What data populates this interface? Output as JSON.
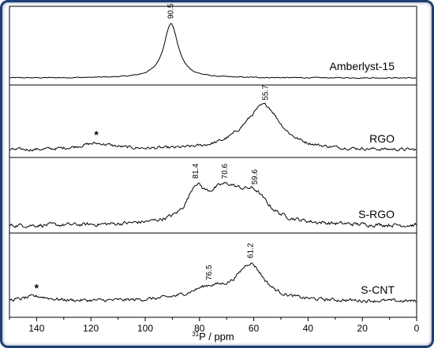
{
  "chart_data": {
    "type": "line",
    "title": "",
    "xlabel_sup": "31",
    "xlabel_rest": "P / ppm",
    "ylabel": "",
    "xlim": [
      150,
      0
    ],
    "x_reversed": true,
    "x_ticks": [
      "140",
      "120",
      "100",
      "80",
      "60",
      "40",
      "20",
      "0"
    ],
    "x_tick_values": [
      140,
      120,
      100,
      80,
      60,
      40,
      20,
      0
    ],
    "grid": false,
    "series": [
      {
        "name": "Amberlyst-15",
        "offset": 3,
        "peaks": [
          {
            "center": 90.5,
            "height": 69,
            "width": 3.2
          }
        ],
        "noise": 0.6,
        "labels": [
          {
            "x": 90.5,
            "text": "90.5"
          }
        ],
        "asterisk": null
      },
      {
        "name": "RGO",
        "offset": 2,
        "peaks": [
          {
            "center": 55.7,
            "height": 50,
            "width": 7
          },
          {
            "center": 62,
            "height": 12,
            "width": 8
          },
          {
            "center": 118,
            "height": 8,
            "width": 8
          }
        ],
        "noise": 2.0,
        "labels": [
          {
            "x": 55.7,
            "text": "55.7"
          }
        ],
        "asterisk": {
          "x": 118,
          "text": "*"
        }
      },
      {
        "name": "S-RGO",
        "offset": 1,
        "peaks": [
          {
            "center": 81.4,
            "height": 34,
            "width": 3.5
          },
          {
            "center": 70.6,
            "height": 44,
            "width": 9
          },
          {
            "center": 59.6,
            "height": 28,
            "width": 6
          }
        ],
        "noise": 2.5,
        "labels": [
          {
            "x": 81.4,
            "text": "81.4"
          },
          {
            "x": 70.6,
            "text": "70.6"
          },
          {
            "x": 59.6,
            "text": "59.6"
          }
        ],
        "asterisk": null
      },
      {
        "name": "S-CNT",
        "offset": 0,
        "peaks": [
          {
            "center": 61.2,
            "height": 45,
            "width": 6
          },
          {
            "center": 76.5,
            "height": 15,
            "width": 9
          },
          {
            "center": 140,
            "height": 6,
            "width": 6
          }
        ],
        "noise": 2.2,
        "labels": [
          {
            "x": 76.5,
            "text": "76.5"
          },
          {
            "x": 61.2,
            "text": "61.2"
          }
        ],
        "asterisk": {
          "x": 140,
          "text": "*"
        }
      }
    ]
  }
}
